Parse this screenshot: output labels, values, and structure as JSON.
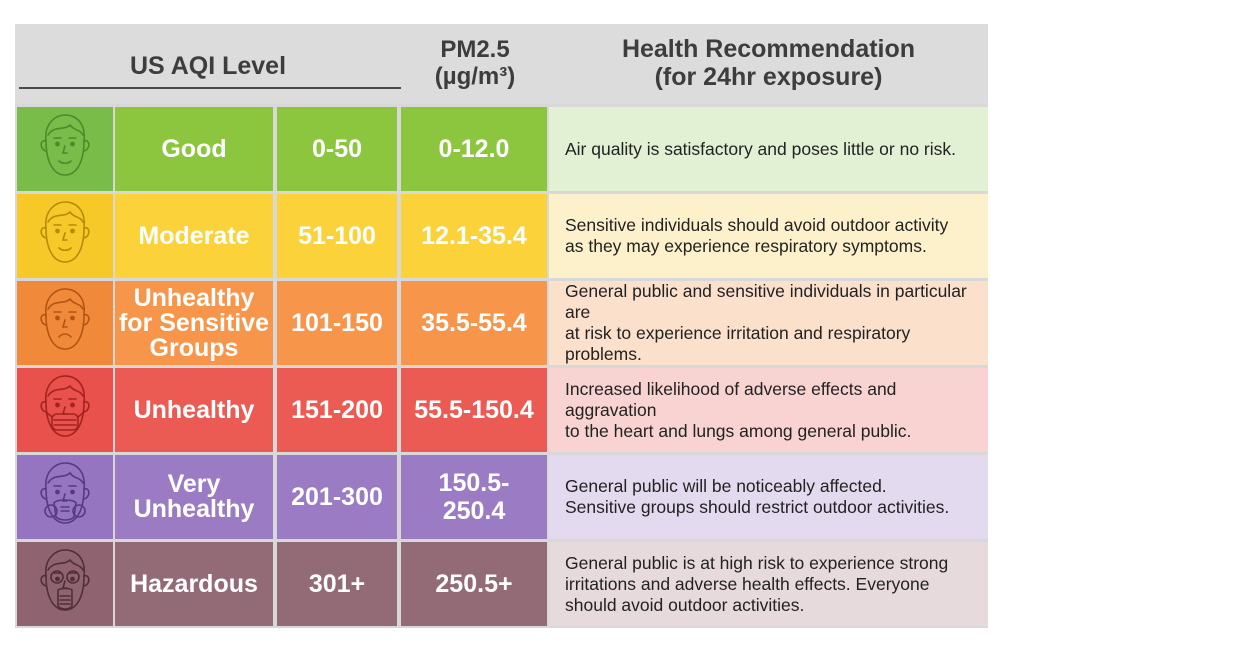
{
  "header": {
    "level": "US AQI Level",
    "pm_line1": "PM2.5",
    "pm_line2": "(µg/m³)",
    "rec_line1": "Health Recommendation",
    "rec_line2": "(for 24hr exposure)"
  },
  "rows": [
    {
      "level": "Good",
      "aqi": "0-50",
      "pm": "0-12.0",
      "rec": [
        "Air quality is satisfactory and poses little or no risk."
      ],
      "face": "neutral-face-icon",
      "colors": {
        "face": "#79bc4a",
        "level": "#8cc63f",
        "aqi": "#8cc63f",
        "pm": "#8cc63f",
        "rec": "#e2f1d4",
        "stroke": "#4f8a2a"
      }
    },
    {
      "level": "Moderate",
      "aqi": "51-100",
      "pm": "12.1-35.4",
      "rec": [
        "Sensitive individuals should avoid outdoor activity",
        "as they may experience respiratory symptoms."
      ],
      "face": "neutral-face-icon",
      "colors": {
        "face": "#f6c928",
        "level": "#fbd23a",
        "aqi": "#fbd23a",
        "pm": "#fbd23a",
        "rec": "#fdf1cc",
        "stroke": "#b58a0c"
      }
    },
    {
      "level": "Unhealthy for Sensitive Groups",
      "aqi": "101-150",
      "pm": "35.5-55.4",
      "rec": [
        "General public and sensitive individuals in particular are",
        "at risk to experience irritation and respiratory problems."
      ],
      "face": "sad-face-icon",
      "colors": {
        "face": "#f08a3a",
        "level": "#f7954a",
        "aqi": "#f7954a",
        "pm": "#f7954a",
        "rec": "#fbe0cc",
        "stroke": "#b25414"
      }
    },
    {
      "level": "Unhealthy",
      "aqi": "151-200",
      "pm": "55.5-150.4",
      "rec": [
        "Increased likelihood of adverse effects and aggravation",
        "to the heart and lungs among general public."
      ],
      "face": "mask-face-icon",
      "colors": {
        "face": "#e8514c",
        "level": "#ec5a54",
        "aqi": "#ec5a54",
        "pm": "#ec5a54",
        "rec": "#f8d3d1",
        "stroke": "#a4231f"
      }
    },
    {
      "level": "Very Unhealthy",
      "aqi": "201-300",
      "pm": "150.5-250.4",
      "rec": [
        "General public will be noticeably affected.",
        "Sensitive groups should restrict outdoor activities."
      ],
      "face": "respirator-face-icon",
      "colors": {
        "face": "#9575c0",
        "level": "#9b7cc4",
        "aqi": "#9b7cc4",
        "pm": "#9b7cc4",
        "rec": "#e4daf0",
        "stroke": "#553a82"
      }
    },
    {
      "level": "Hazardous",
      "aqi": "301+",
      "pm": "250.5+",
      "rec": [
        "General public is at high risk to experience strong",
        "irritations and adverse health effects. Everyone",
        "should avoid outdoor activities."
      ],
      "face": "gas-mask-icon",
      "colors": {
        "face": "#8f6470",
        "level": "#936b77",
        "aqi": "#936b77",
        "pm": "#936b77",
        "rec": "#e7dadd",
        "stroke": "#4f2f38"
      }
    }
  ]
}
